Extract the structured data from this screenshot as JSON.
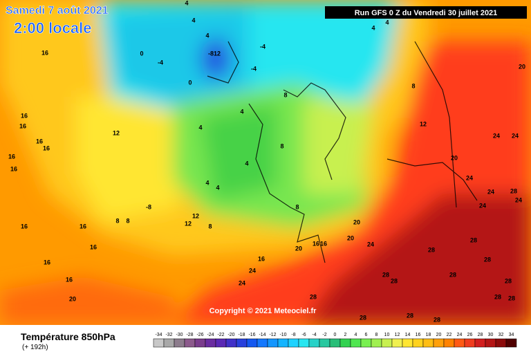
{
  "header": {
    "date": "Samedi 7 août 2021",
    "time": "2:00 locale",
    "run": "Run GFS 0 Z du Vendredi 30 juillet 2021"
  },
  "copyright": "Copyright © 2021 Meteociel.fr",
  "footer": {
    "title": "Température 850hPa",
    "lead": "(+ 192h)"
  },
  "legend": {
    "labels": [
      -34,
      -32,
      -30,
      -28,
      -26,
      -24,
      -22,
      -20,
      -18,
      -16,
      -14,
      -12,
      -10,
      -8,
      -6,
      -4,
      -2,
      0,
      2,
      4,
      6,
      8,
      10,
      12,
      14,
      16,
      18,
      20,
      22,
      24,
      26,
      28,
      30,
      32,
      34
    ],
    "colors": [
      "#c8c8c8",
      "#a8a8a8",
      "#8c7c8c",
      "#8c5a8c",
      "#7a3c8c",
      "#6a2ca0",
      "#5a28b4",
      "#4030c8",
      "#2840dc",
      "#1458f0",
      "#1478ff",
      "#1496ff",
      "#14b4ff",
      "#1ed2ff",
      "#28e6f0",
      "#28d2c8",
      "#28c8a0",
      "#28be78",
      "#32d250",
      "#50e650",
      "#78f050",
      "#a0f050",
      "#c8f050",
      "#f0f050",
      "#ffe632",
      "#ffd21e",
      "#ffbe14",
      "#ffa00a",
      "#ff8200",
      "#ff5a14",
      "#f03c1e",
      "#d21e1e",
      "#b41414",
      "#8c0a0a",
      "#500000"
    ]
  },
  "map": {
    "labels": [
      "16",
      "16",
      "16",
      "16",
      "16",
      "16",
      "16",
      "16",
      "16",
      "16",
      "16",
      "16",
      "20",
      "12",
      "12",
      "12",
      "-8",
      "8",
      "8",
      "8",
      "4",
      "4",
      "4",
      "4",
      "4",
      "4",
      "4",
      "8",
      "8",
      "8",
      "-8",
      "12",
      "-4",
      "-4",
      "-4",
      "0",
      "0",
      "20",
      "20",
      "20",
      "16",
      "16",
      "24",
      "16",
      "24",
      "24",
      "8",
      "12",
      "20",
      "24",
      "24",
      "24",
      "24",
      "28",
      "24",
      "24",
      "28",
      "28",
      "28",
      "28",
      "28",
      "28",
      "28",
      "28",
      "28",
      "28",
      "28",
      "28",
      "28",
      "20",
      "4",
      "4",
      "4",
      "4"
    ]
  }
}
